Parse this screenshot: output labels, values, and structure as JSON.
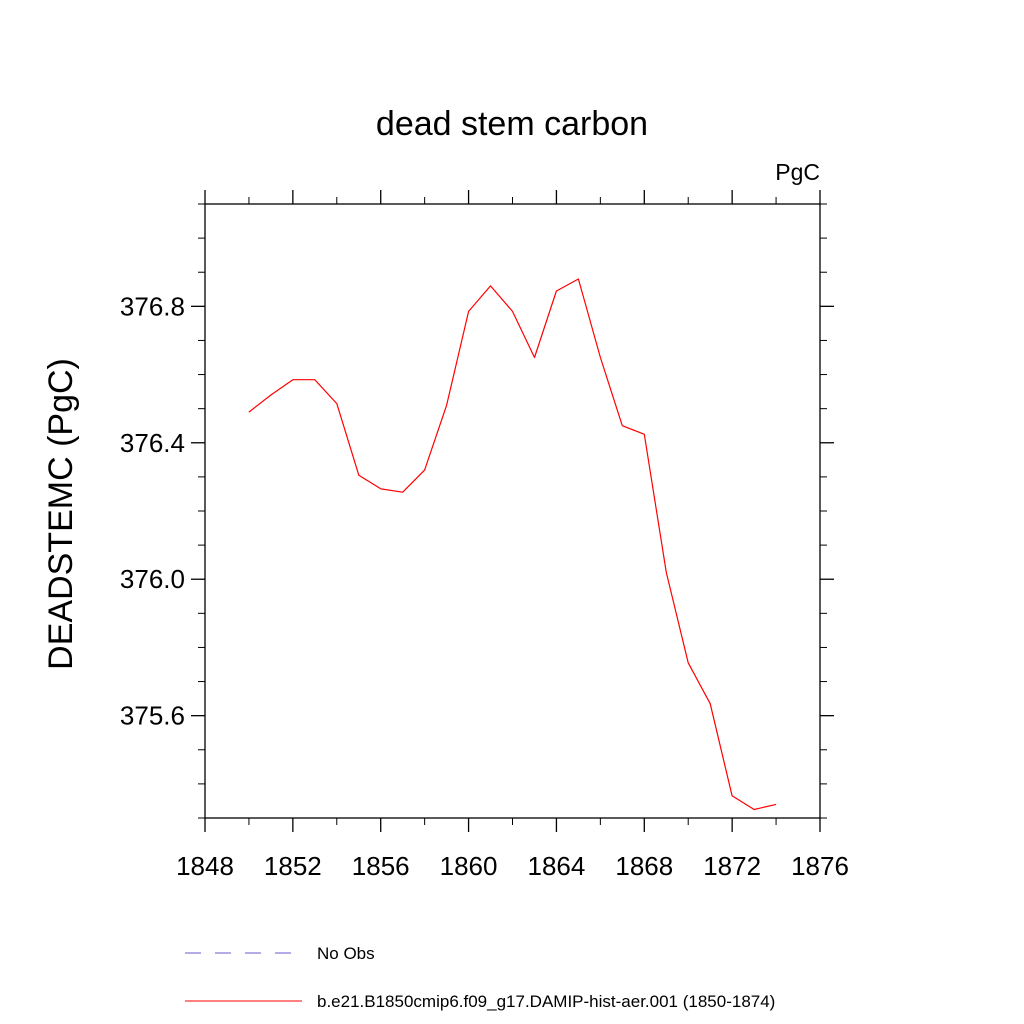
{
  "chart_data": {
    "type": "line",
    "title": "dead stem carbon",
    "units_label": "PgC",
    "ylabel": "DEADSTEMC  (PgC)",
    "xlabel": "",
    "xlim": [
      1848,
      1876
    ],
    "ylim": [
      375.3,
      377.1
    ],
    "x_ticks": [
      1848,
      1852,
      1856,
      1860,
      1864,
      1868,
      1872,
      1876
    ],
    "y_ticks": [
      375.6,
      376.0,
      376.4,
      376.8
    ],
    "y_tick_labels": [
      "375.6",
      "376.0",
      "376.4",
      "376.8"
    ],
    "grid": false,
    "series": [
      {
        "name": "b.e21.B1850cmip6.f09_g17.DAMIP-hist-aer.001 (1850-1874)",
        "color": "#ff0000",
        "style": "solid",
        "x": [
          1850,
          1851,
          1852,
          1853,
          1854,
          1855,
          1856,
          1857,
          1858,
          1859,
          1860,
          1861,
          1862,
          1863,
          1864,
          1865,
          1866,
          1867,
          1868,
          1869,
          1870,
          1871,
          1872,
          1873,
          1874
        ],
        "y": [
          376.49,
          376.54,
          376.585,
          376.585,
          376.515,
          376.305,
          376.265,
          376.255,
          376.32,
          376.51,
          376.785,
          376.86,
          376.785,
          376.65,
          376.845,
          376.88,
          376.65,
          376.45,
          376.425,
          376.02,
          375.755,
          375.635,
          375.365,
          375.325,
          375.34
        ]
      }
    ],
    "legend": {
      "placement": "bottom",
      "entries": [
        {
          "label": "No Obs",
          "color": "#6a5acd",
          "style": "dashed"
        },
        {
          "label": "b.e21.B1850cmip6.f09_g17.DAMIP-hist-aer.001 (1850-1874)",
          "color": "#ff0000",
          "style": "solid"
        }
      ]
    }
  }
}
